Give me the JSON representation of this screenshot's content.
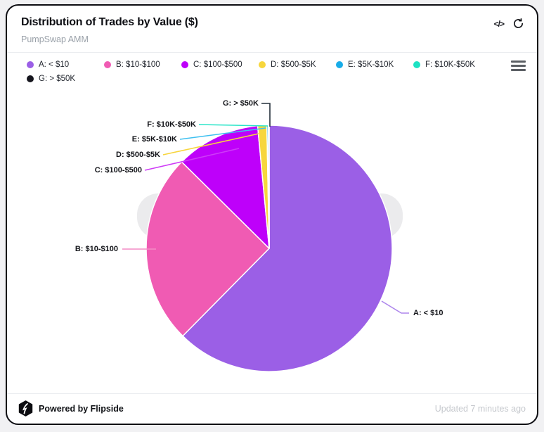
{
  "header": {
    "title": "Distribution of Trades by Value ($)",
    "subtitle": "PumpSwap AMM",
    "code_icon_glyph": "</>"
  },
  "chart_data": {
    "type": "pie",
    "title": "Distribution of Trades by Value ($)",
    "subtitle": "PumpSwap AMM",
    "legend_position": "top",
    "start_angle_deg": 0,
    "direction": "clockwise",
    "slices": [
      {
        "label": "A: < $10",
        "color": "#9B5FE6",
        "line_color": "#AD85EC",
        "pct": 62.4
      },
      {
        "label": "B: $10-$100",
        "color": "#F05BB3",
        "line_color": "#F48CC5",
        "pct": 25.0
      },
      {
        "label": "C: $100-$500",
        "color": "#BE00FA",
        "line_color": "#CE3BF7",
        "pct": 11.1
      },
      {
        "label": "D: $500-$5K",
        "color": "#F7D63C",
        "line_color": "#F7D53C",
        "pct": 1.2
      },
      {
        "label": "E: $5K-$10K",
        "color": "#18ACE8",
        "line_color": "#3FC0F0",
        "pct": 0.2
      },
      {
        "label": "F: $10K-$50K",
        "color": "#1EE2C3",
        "line_color": "#2BE5C9",
        "pct": 0.07
      },
      {
        "label": "G: > $50K",
        "color": "#16161E",
        "line_color": "#25313B",
        "pct": 0.03
      }
    ]
  },
  "footer": {
    "powered_by": "Powered by Flipside",
    "updated": "Updated 7 minutes ago"
  },
  "colors": {
    "page_bg": "#F1F1F3",
    "card_bg": "#FFFFFF",
    "card_border": "#0D0D12",
    "subtitle_text": "#9AA1A9",
    "updated_text": "#C5C8CD",
    "watermark": "#EBEBED"
  }
}
